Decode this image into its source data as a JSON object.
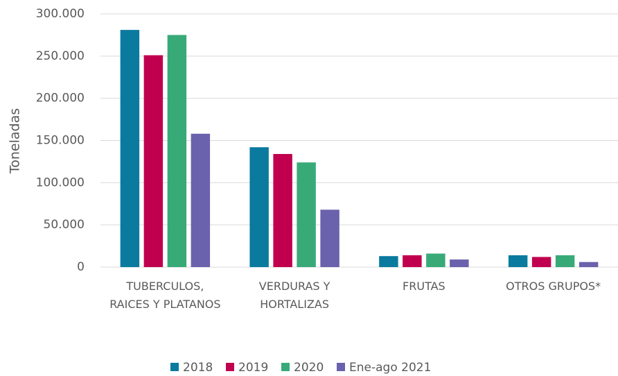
{
  "chart_data": {
    "type": "bar",
    "y_label": "Toneladas",
    "categories": [
      "TUBERCULOS, RAICES Y PLATANOS",
      "VERDURAS Y HORTALIZAS",
      "FRUTAS",
      "OTROS GRUPOS*"
    ],
    "series": [
      {
        "name": "2018",
        "color": "#0a7a9e",
        "values": [
          281000,
          142000,
          13000,
          14000
        ]
      },
      {
        "name": "2019",
        "color": "#c0004f",
        "values": [
          251000,
          134000,
          14000,
          12000
        ]
      },
      {
        "name": "2020",
        "color": "#38aa78",
        "values": [
          275000,
          124000,
          16000,
          14000
        ]
      },
      {
        "name": "Ene-ago 2021",
        "color": "#6a62ad",
        "values": [
          158000,
          68000,
          9000,
          6000
        ]
      }
    ],
    "ylim": [
      0,
      300000
    ],
    "yticks": [
      0,
      {
        "value": 50000,
        "label": "50.000"
      },
      {
        "value": 100000,
        "label": "100.000"
      },
      {
        "value": 150000,
        "label": "150.000"
      },
      {
        "value": 200000,
        "label": "200.000"
      },
      {
        "value": 250000,
        "label": "250.000"
      },
      {
        "value": 300000,
        "label": "300.000"
      }
    ],
    "grid": true,
    "legend": "bottom"
  }
}
